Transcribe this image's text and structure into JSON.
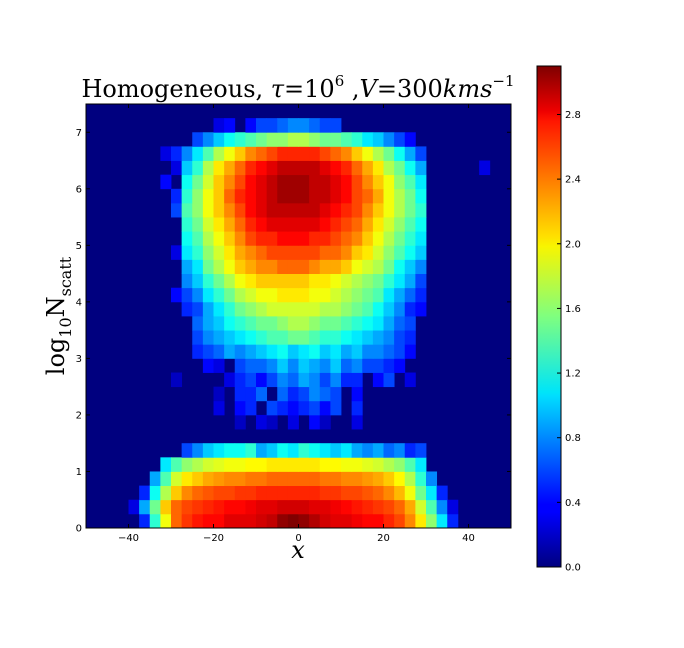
{
  "chart_data": {
    "type": "heatmap",
    "title": {
      "prefix": "Homogeneous, ",
      "tau_symbol": "τ",
      "tau_eq": "=10",
      "tau_exp": "6",
      "comma": " ,",
      "v_symbol": "V",
      "v_eq": "=300",
      "unit": "kms",
      "unit_exp": "−1"
    },
    "xlabel": "x",
    "ylabel": {
      "base": "log",
      "base_sub": "10",
      "var": "N",
      "var_sub": "scatt"
    },
    "xlim": [
      -50,
      50
    ],
    "ylim": [
      0,
      7.5
    ],
    "x_ticks": [
      -40,
      -20,
      0,
      20,
      40
    ],
    "x_tick_labels": [
      "−40",
      "−20",
      "0",
      "20",
      "40"
    ],
    "y_ticks": [
      0,
      1,
      2,
      3,
      4,
      5,
      6,
      7
    ],
    "y_tick_labels": [
      "0",
      "1",
      "2",
      "3",
      "4",
      "5",
      "6",
      "7"
    ],
    "colorbar": {
      "range": [
        0,
        3.1
      ],
      "ticks": [
        0.0,
        0.4,
        0.8,
        1.2,
        1.6,
        2.0,
        2.4,
        2.8
      ],
      "tick_labels": [
        "0.0",
        "0.4",
        "0.8",
        "1.2",
        "1.6",
        "2.0",
        "2.4",
        "2.8"
      ],
      "colormap": "jet"
    },
    "grid": false,
    "bins": {
      "x_start": -50,
      "x_width": 2.5,
      "nx": 40,
      "y_start": 0,
      "y_width": 0.25,
      "ny": 30
    },
    "description": "log10 counts per bin; each row lists 40 values from x=-50 to x=50, rows ordered from y-bin 0 (bottom) to 29 (top)",
    "z": [
      [
        0,
        0,
        0,
        0,
        0,
        0.5,
        1.3,
        1.9,
        2.4,
        2.55,
        2.65,
        2.7,
        2.7,
        2.8,
        2.8,
        2.8,
        2.85,
        2.9,
        3.05,
        3.1,
        3.05,
        2.95,
        2.85,
        2.8,
        2.8,
        2.75,
        2.7,
        2.7,
        2.6,
        2.5,
        2.3,
        2.0,
        1.6,
        1.1,
        0.5,
        0,
        0,
        0,
        0,
        0
      ],
      [
        0,
        0,
        0,
        0,
        0.3,
        0.9,
        1.5,
        2.1,
        2.4,
        2.5,
        2.55,
        2.6,
        2.65,
        2.7,
        2.7,
        2.75,
        2.8,
        2.8,
        2.85,
        2.85,
        2.85,
        2.8,
        2.8,
        2.75,
        2.7,
        2.65,
        2.6,
        2.55,
        2.5,
        2.4,
        2.2,
        1.8,
        1.4,
        0.8,
        0.3,
        0,
        0,
        0,
        0,
        0
      ],
      [
        0,
        0,
        0,
        0,
        0,
        0.5,
        1.2,
        1.7,
        2.1,
        2.3,
        2.4,
        2.45,
        2.5,
        2.5,
        2.55,
        2.55,
        2.6,
        2.6,
        2.6,
        2.6,
        2.6,
        2.6,
        2.55,
        2.55,
        2.5,
        2.5,
        2.45,
        2.4,
        2.3,
        2.15,
        1.9,
        1.5,
        1.1,
        0.5,
        0,
        0,
        0,
        0,
        0,
        0
      ],
      [
        0,
        0,
        0,
        0,
        0,
        0,
        0.9,
        1.4,
        1.8,
        2.0,
        2.1,
        2.2,
        2.25,
        2.3,
        2.3,
        2.35,
        2.35,
        2.4,
        2.4,
        2.4,
        2.4,
        2.4,
        2.35,
        2.35,
        2.3,
        2.3,
        2.25,
        2.2,
        2.1,
        1.95,
        1.7,
        1.3,
        0.8,
        0,
        0,
        0,
        0,
        0,
        0,
        0
      ],
      [
        0,
        0,
        0,
        0,
        0,
        0,
        0,
        1.1,
        1.4,
        1.6,
        1.7,
        1.8,
        1.85,
        1.9,
        1.9,
        1.95,
        1.95,
        2.0,
        2.0,
        2.0,
        2.0,
        2.0,
        1.95,
        1.95,
        1.9,
        1.9,
        1.85,
        1.8,
        1.7,
        1.6,
        1.4,
        1.1,
        0,
        0,
        0,
        0,
        0,
        0,
        0,
        0
      ],
      [
        0,
        0,
        0,
        0,
        0,
        0,
        0,
        0,
        0,
        0.6,
        0.8,
        1.0,
        1.1,
        1.2,
        1.2,
        1.3,
        0.9,
        1.0,
        1.2,
        1.1,
        1.3,
        1.2,
        1.1,
        1.0,
        1.1,
        0.9,
        0.8,
        0.9,
        0.7,
        0.8,
        0.5,
        0.6,
        0,
        0,
        0,
        0,
        0,
        0,
        0,
        0
      ],
      [
        0,
        0,
        0,
        0,
        0,
        0,
        0,
        0,
        0,
        0,
        0,
        0,
        0,
        0,
        0,
        0,
        0,
        0,
        0,
        0,
        0,
        0,
        0,
        0,
        0,
        0,
        0,
        0,
        0,
        0,
        0,
        0,
        0,
        0,
        0,
        0,
        0,
        0,
        0,
        0
      ],
      [
        0,
        0,
        0,
        0,
        0,
        0,
        0,
        0,
        0,
        0,
        0,
        0,
        0,
        0,
        0.2,
        0,
        0.3,
        0.2,
        0,
        0.3,
        0,
        0.4,
        0.2,
        0,
        0,
        0.3,
        0,
        0,
        0,
        0,
        0,
        0,
        0,
        0,
        0,
        0,
        0,
        0,
        0,
        0
      ],
      [
        0,
        0,
        0,
        0,
        0,
        0,
        0,
        0,
        0,
        0,
        0,
        0,
        0.3,
        0,
        0.4,
        0.5,
        0,
        0.6,
        0.5,
        0.4,
        0.5,
        0.6,
        0.4,
        0.6,
        0,
        0.5,
        0,
        0,
        0,
        0,
        0,
        0,
        0,
        0,
        0,
        0,
        0,
        0,
        0,
        0
      ],
      [
        0,
        0,
        0,
        0,
        0,
        0,
        0,
        0,
        0,
        0,
        0,
        0,
        0.2,
        0,
        0.5,
        0.5,
        0.7,
        0,
        0.7,
        0.5,
        0.6,
        0.8,
        0.7,
        0.6,
        0,
        0.4,
        0,
        0,
        0,
        0,
        0,
        0,
        0,
        0,
        0,
        0,
        0,
        0,
        0,
        0
      ],
      [
        0,
        0,
        0,
        0,
        0,
        0,
        0,
        0,
        0.2,
        0,
        0,
        0,
        0,
        0.3,
        0.5,
        0.6,
        0.4,
        0.6,
        0.8,
        0.7,
        0.9,
        0.8,
        0.6,
        0.8,
        0.5,
        0.5,
        0,
        0.4,
        0.6,
        0,
        0.3,
        0,
        0,
        0,
        0,
        0,
        0,
        0,
        0,
        0
      ],
      [
        0,
        0,
        0,
        0,
        0,
        0,
        0,
        0,
        0,
        0,
        0,
        0.4,
        0.3,
        0,
        0.6,
        0.7,
        0.7,
        0.8,
        1.0,
        0.8,
        1.0,
        0.9,
        0.8,
        1.0,
        0.7,
        0.8,
        0.6,
        0.6,
        0.5,
        0.4,
        0,
        0,
        0,
        0,
        0,
        0,
        0,
        0,
        0,
        0
      ],
      [
        0,
        0,
        0,
        0,
        0,
        0,
        0,
        0,
        0,
        0,
        0.5,
        0.6,
        0.7,
        0.9,
        0.8,
        0.9,
        1.0,
        1.1,
        1.2,
        1.0,
        1.1,
        1.2,
        1.0,
        1.1,
        0.9,
        1.0,
        0.8,
        0.8,
        0.7,
        0.6,
        0.4,
        0,
        0,
        0,
        0,
        0,
        0,
        0,
        0,
        0
      ],
      [
        0,
        0,
        0,
        0,
        0,
        0,
        0,
        0,
        0,
        0,
        0.6,
        0.8,
        0.9,
        1.0,
        1.1,
        1.2,
        1.3,
        1.4,
        1.4,
        1.5,
        1.5,
        1.4,
        1.3,
        1.3,
        1.2,
        1.1,
        1.0,
        0.9,
        0.8,
        0.6,
        0.5,
        0,
        0,
        0,
        0,
        0,
        0,
        0,
        0,
        0
      ],
      [
        0,
        0,
        0,
        0,
        0,
        0,
        0,
        0,
        0,
        0,
        0.7,
        0.9,
        1.0,
        1.2,
        1.3,
        1.4,
        1.5,
        1.5,
        1.6,
        1.7,
        1.7,
        1.6,
        1.5,
        1.5,
        1.4,
        1.3,
        1.2,
        1.1,
        0.9,
        0.7,
        0.6,
        0,
        0,
        0,
        0,
        0,
        0,
        0,
        0,
        0
      ],
      [
        0,
        0,
        0,
        0,
        0,
        0,
        0,
        0,
        0,
        0.5,
        0.6,
        0.9,
        1.1,
        1.3,
        1.5,
        1.6,
        1.7,
        1.8,
        1.8,
        1.8,
        1.8,
        1.8,
        1.7,
        1.7,
        1.6,
        1.5,
        1.4,
        1.2,
        1.0,
        0.8,
        0.5,
        0.4,
        0,
        0,
        0,
        0,
        0,
        0,
        0,
        0
      ],
      [
        0,
        0,
        0,
        0,
        0,
        0,
        0,
        0,
        0.4,
        0.6,
        0.8,
        1.1,
        1.3,
        1.5,
        1.7,
        1.8,
        1.9,
        1.9,
        2.0,
        2.0,
        2.0,
        1.9,
        1.9,
        1.8,
        1.7,
        1.6,
        1.5,
        1.4,
        1.1,
        0.9,
        0.7,
        0.5,
        0,
        0,
        0,
        0,
        0,
        0,
        0,
        0
      ],
      [
        0,
        0,
        0,
        0,
        0,
        0,
        0,
        0,
        0,
        0.8,
        1.0,
        1.3,
        1.5,
        1.7,
        1.9,
        2.0,
        2.1,
        2.1,
        2.1,
        2.1,
        2.1,
        2.0,
        2.0,
        1.9,
        1.8,
        1.7,
        1.6,
        1.5,
        1.3,
        1.1,
        0.9,
        0.6,
        0,
        0,
        0,
        0,
        0,
        0,
        0,
        0
      ],
      [
        0,
        0,
        0,
        0,
        0,
        0,
        0,
        0,
        0,
        0.9,
        1.1,
        1.5,
        1.7,
        1.9,
        2.1,
        2.2,
        2.3,
        2.3,
        2.4,
        2.4,
        2.4,
        2.3,
        2.2,
        2.2,
        2.1,
        1.9,
        1.8,
        1.7,
        1.5,
        1.2,
        1.0,
        0.8,
        0,
        0,
        0,
        0,
        0,
        0,
        0,
        0
      ],
      [
        0,
        0,
        0,
        0,
        0,
        0,
        0,
        0,
        0.3,
        1.1,
        1.3,
        1.6,
        1.8,
        2.0,
        2.2,
        2.3,
        2.4,
        2.5,
        2.5,
        2.5,
        2.5,
        2.5,
        2.4,
        2.4,
        2.3,
        2.1,
        2.0,
        1.8,
        1.6,
        1.4,
        1.2,
        1.0,
        0,
        0,
        0,
        0,
        0,
        0,
        0,
        0
      ],
      [
        0,
        0,
        0,
        0,
        0,
        0,
        0,
        0,
        0,
        1.2,
        1.4,
        1.7,
        1.9,
        2.1,
        2.3,
        2.5,
        2.6,
        2.6,
        2.7,
        2.7,
        2.7,
        2.6,
        2.6,
        2.5,
        2.4,
        2.3,
        2.1,
        1.9,
        1.7,
        1.5,
        1.3,
        1.1,
        0,
        0,
        0,
        0,
        0,
        0,
        0,
        0
      ],
      [
        0,
        0,
        0,
        0,
        0,
        0,
        0,
        0,
        0,
        1.3,
        1.5,
        1.8,
        2.0,
        2.2,
        2.4,
        2.6,
        2.7,
        2.8,
        2.8,
        2.8,
        2.8,
        2.8,
        2.7,
        2.6,
        2.5,
        2.4,
        2.2,
        2.0,
        1.8,
        1.6,
        1.4,
        1.2,
        0,
        0,
        0,
        0,
        0,
        0,
        0,
        0
      ],
      [
        0,
        0,
        0,
        0,
        0,
        0,
        0,
        0,
        0.6,
        1.4,
        1.6,
        1.9,
        2.1,
        2.3,
        2.5,
        2.7,
        2.8,
        2.9,
        2.9,
        2.9,
        2.9,
        2.9,
        2.8,
        2.7,
        2.6,
        2.5,
        2.3,
        2.1,
        1.9,
        1.7,
        1.5,
        1.3,
        0,
        0,
        0,
        0,
        0,
        0,
        0,
        0
      ],
      [
        0,
        0,
        0,
        0,
        0,
        0,
        0,
        0,
        0.5,
        1.3,
        1.6,
        1.9,
        2.1,
        2.4,
        2.6,
        2.7,
        2.8,
        2.9,
        3.0,
        3.0,
        3.0,
        2.9,
        2.9,
        2.8,
        2.7,
        2.5,
        2.4,
        2.2,
        1.9,
        1.7,
        1.5,
        1.2,
        0,
        0,
        0,
        0,
        0,
        0,
        0,
        0
      ],
      [
        0,
        0,
        0,
        0,
        0,
        0,
        0,
        0.4,
        0,
        1.2,
        1.5,
        1.8,
        2.1,
        2.3,
        2.5,
        2.7,
        2.8,
        2.9,
        3.0,
        3.0,
        3.0,
        2.9,
        2.9,
        2.8,
        2.7,
        2.5,
        2.3,
        2.1,
        1.9,
        1.6,
        1.4,
        1.1,
        0,
        0,
        0,
        0,
        0,
        0,
        0,
        0
      ],
      [
        0,
        0,
        0,
        0,
        0,
        0,
        0,
        0,
        0.3,
        1.0,
        1.3,
        1.7,
        2.0,
        2.2,
        2.4,
        2.6,
        2.7,
        2.8,
        2.9,
        2.9,
        2.9,
        2.9,
        2.8,
        2.7,
        2.6,
        2.4,
        2.2,
        2.0,
        1.7,
        1.5,
        1.2,
        0.9,
        0,
        0,
        0,
        0,
        0,
        0.3,
        0,
        0
      ],
      [
        0,
        0,
        0,
        0,
        0,
        0,
        0,
        0.3,
        0.5,
        0.8,
        1.1,
        1.4,
        1.7,
        1.9,
        2.1,
        2.3,
        2.4,
        2.5,
        2.6,
        2.6,
        2.6,
        2.6,
        2.5,
        2.4,
        2.3,
        2.1,
        1.9,
        1.7,
        1.5,
        1.2,
        0.9,
        0.6,
        0,
        0,
        0,
        0,
        0,
        0,
        0,
        0
      ],
      [
        0,
        0,
        0,
        0,
        0,
        0,
        0,
        0,
        0,
        0,
        0.6,
        0.8,
        1.0,
        1.2,
        1.3,
        1.4,
        1.5,
        1.6,
        1.6,
        1.7,
        1.7,
        1.6,
        1.5,
        1.5,
        1.4,
        1.3,
        1.1,
        1.0,
        0.8,
        0.6,
        0.4,
        0,
        0,
        0,
        0,
        0,
        0,
        0,
        0,
        0
      ],
      [
        0,
        0,
        0,
        0,
        0,
        0,
        0,
        0,
        0,
        0,
        0,
        0,
        0.3,
        0.4,
        0,
        0.4,
        0.6,
        0.6,
        0.7,
        0.8,
        0.8,
        0.7,
        0.6,
        0.6,
        0,
        0,
        0,
        0,
        0,
        0,
        0,
        0,
        0,
        0,
        0,
        0,
        0,
        0,
        0,
        0
      ],
      [
        0,
        0,
        0,
        0,
        0,
        0,
        0,
        0,
        0,
        0,
        0,
        0,
        0,
        0,
        0,
        0,
        0,
        0,
        0,
        0,
        0,
        0,
        0,
        0,
        0,
        0,
        0,
        0,
        0,
        0,
        0,
        0,
        0,
        0,
        0,
        0,
        0,
        0,
        0,
        0
      ]
    ]
  }
}
